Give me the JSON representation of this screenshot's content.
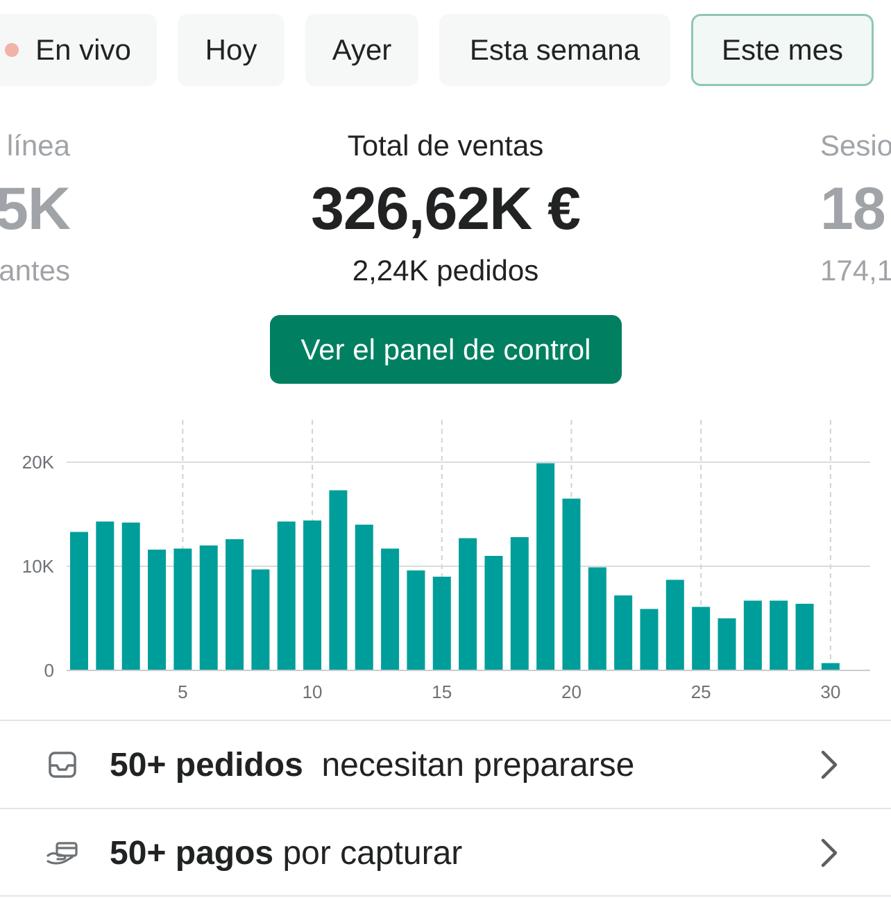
{
  "tabs": [
    {
      "label": "En vivo",
      "active": false
    },
    {
      "label": "Hoy",
      "active": false
    },
    {
      "label": "Ayer",
      "active": false
    },
    {
      "label": "Esta semana",
      "active": false
    },
    {
      "label": "Este mes",
      "active": true
    }
  ],
  "metrics": {
    "left": {
      "title": "línea",
      "value": "5K",
      "sub": "antes"
    },
    "center": {
      "title": "Total de ventas",
      "value": "326,62K €",
      "sub": "2,24K pedidos"
    },
    "right": {
      "title": "Sesio",
      "value": "18",
      "sub": "174,1"
    }
  },
  "cta": {
    "label": "Ver el panel de control"
  },
  "colors": {
    "accent": "#008060",
    "bar": "#009e9a",
    "live_dot": "#f0b3a8"
  },
  "chart_data": {
    "type": "bar",
    "x": [
      1,
      2,
      3,
      4,
      5,
      6,
      7,
      8,
      9,
      10,
      11,
      12,
      13,
      14,
      15,
      16,
      17,
      18,
      19,
      20,
      21,
      22,
      23,
      24,
      25,
      26,
      27,
      28,
      29,
      30
    ],
    "values": [
      13300,
      14300,
      14200,
      11600,
      11700,
      12000,
      12600,
      9700,
      14300,
      14400,
      17300,
      14000,
      11700,
      9600,
      9000,
      12700,
      11000,
      12800,
      19900,
      16500,
      9900,
      7200,
      5900,
      8700,
      6100,
      5000,
      6700,
      6700,
      6400,
      700
    ],
    "ylim": [
      0,
      20000
    ],
    "yticks": [
      {
        "value": 0,
        "label": "0"
      },
      {
        "value": 10000,
        "label": "10K"
      },
      {
        "value": 20000,
        "label": "20K"
      }
    ],
    "xticks": [
      {
        "value": 5,
        "label": "5"
      },
      {
        "value": 10,
        "label": "10"
      },
      {
        "value": 15,
        "label": "15"
      },
      {
        "value": 20,
        "label": "20"
      },
      {
        "value": 25,
        "label": "25"
      },
      {
        "value": 30,
        "label": "30"
      }
    ],
    "grid": true
  },
  "tasks": [
    {
      "icon": "inbox-icon",
      "bold": "50+ pedidos",
      "rest": "necesitan prepararse"
    },
    {
      "icon": "payment-icon",
      "bold": "50+ pagos",
      "rest": "por capturar"
    }
  ]
}
